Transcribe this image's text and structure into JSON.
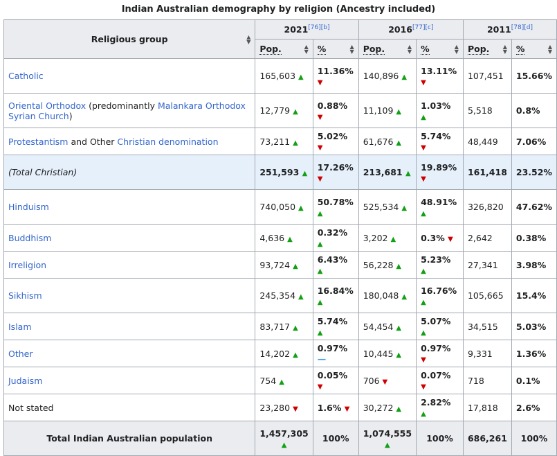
{
  "caption": "Indian Australian demography by religion (Ancestry included)",
  "header": {
    "group_label": "Religious group",
    "years": [
      {
        "year": "2021",
        "refs": "[76][b]"
      },
      {
        "year": "2016",
        "refs": "[77][c]"
      },
      {
        "year": "2011",
        "refs": "[78][d]"
      }
    ],
    "pop_label": "Pop.",
    "pct_label": "%"
  },
  "rows": [
    {
      "name": "catholic",
      "parts": [
        {
          "t": "Catholic",
          "link": true
        }
      ],
      "p21": "165,603",
      "p21t": "up",
      "c21": "11.36%",
      "c21t": "down",
      "p16": "140,896",
      "p16t": "up",
      "c16": "13.11%",
      "c16t": "down",
      "p11": "107,451",
      "c11": "15.66%"
    },
    {
      "name": "oriental-orthodox",
      "parts": [
        {
          "t": "Oriental Orthodox",
          "link": true
        },
        {
          "t": " (predominantly ",
          "link": false
        },
        {
          "t": "Malankara Orthodox Syrian Church",
          "link": true
        },
        {
          "t": ")",
          "link": false
        }
      ],
      "p21": "12,779",
      "p21t": "up",
      "c21": "0.88%",
      "c21t": "down",
      "p16": "11,109",
      "p16t": "up",
      "c16": "1.03%",
      "c16t": "up",
      "p11": "5,518",
      "c11": "0.8%"
    },
    {
      "name": "protestantism",
      "parts": [
        {
          "t": "Protestantism",
          "link": true
        },
        {
          "t": " and Other ",
          "link": false
        },
        {
          "t": "Christian denomination",
          "link": true
        }
      ],
      "p21": "73,211",
      "p21t": "up",
      "c21": "5.02%",
      "c21t": "down",
      "p16": "61,676",
      "p16t": "up",
      "c16": "5.74%",
      "c16t": "down",
      "p11": "48,449",
      "c11": "7.06%"
    },
    {
      "name": "total-christian",
      "parts": [
        {
          "t": "(Total Christian)",
          "link": false
        }
      ],
      "p21": "251,593",
      "p21t": "up",
      "c21": "17.26%",
      "c21t": "down",
      "p16": "213,681",
      "p16t": "up",
      "c16": "19.89%",
      "c16t": "down",
      "p11": "161,418",
      "c11": "23.52%"
    },
    {
      "name": "hinduism",
      "parts": [
        {
          "t": "Hinduism",
          "link": true
        }
      ],
      "p21": "740,050",
      "p21t": "up",
      "c21": "50.78%",
      "c21t": "up",
      "p16": "525,534",
      "p16t": "up",
      "c16": "48.91%",
      "c16t": "up",
      "p11": "326,820",
      "c11": "47.62%"
    },
    {
      "name": "buddhism",
      "parts": [
        {
          "t": "Buddhism",
          "link": true
        }
      ],
      "p21": "4,636",
      "p21t": "up",
      "c21": "0.32%",
      "c21t": "up",
      "p16": "3,202",
      "p16t": "up",
      "c16": "0.3%",
      "c16t": "down",
      "p11": "2,642",
      "c11": "0.38%"
    },
    {
      "name": "irreligion",
      "parts": [
        {
          "t": "Irreligion",
          "link": true
        }
      ],
      "p21": "93,724",
      "p21t": "up",
      "c21": "6.43%",
      "c21t": "up",
      "p16": "56,228",
      "p16t": "up",
      "c16": "5.23%",
      "c16t": "up",
      "p11": "27,341",
      "c11": "3.98%"
    },
    {
      "name": "sikhism",
      "parts": [
        {
          "t": "Sikhism",
          "link": true
        }
      ],
      "p21": "245,354",
      "p21t": "up",
      "c21": "16.84%",
      "c21t": "up",
      "p16": "180,048",
      "p16t": "up",
      "c16": "16.76%",
      "c16t": "up",
      "p11": "105,665",
      "c11": "15.4%"
    },
    {
      "name": "islam",
      "parts": [
        {
          "t": "Islam",
          "link": true
        }
      ],
      "p21": "83,717",
      "p21t": "up",
      "c21": "5.74%",
      "c21t": "up",
      "p16": "54,454",
      "p16t": "up",
      "c16": "5.07%",
      "c16t": "up",
      "p11": "34,515",
      "c11": "5.03%"
    },
    {
      "name": "other",
      "parts": [
        {
          "t": "Other",
          "link": true
        }
      ],
      "p21": "14,202",
      "p21t": "up",
      "c21": "0.97%",
      "c21t": "flat",
      "p16": "10,445",
      "p16t": "up",
      "c16": "0.97%",
      "c16t": "down",
      "p11": "9,331",
      "c11": "1.36%"
    },
    {
      "name": "judaism",
      "parts": [
        {
          "t": "Judaism",
          "link": true
        }
      ],
      "p21": "754",
      "p21t": "up",
      "c21": "0.05%",
      "c21t": "down",
      "p16": "706",
      "p16t": "down",
      "c16": "0.07%",
      "c16t": "down",
      "p11": "718",
      "c11": "0.1%"
    },
    {
      "name": "not-stated",
      "parts": [
        {
          "t": "Not stated",
          "link": false
        }
      ],
      "p21": "23,280",
      "p21t": "down",
      "c21": "1.6%",
      "c21t": "down",
      "p16": "30,272",
      "p16t": "up",
      "c16": "2.82%",
      "c16t": "up",
      "p11": "17,818",
      "c11": "2.6%"
    }
  ],
  "total": {
    "label": "Total Indian Australian population",
    "p21": "1,457,305",
    "p21t": "up",
    "c21": "100%",
    "p16": "1,074,555",
    "p16t": "up",
    "c16": "100%",
    "p11": "686,261",
    "c11": "100%"
  },
  "colors": {
    "header_bg": "#eaecf0",
    "border": "#a2a9b1",
    "link": "#3366cc",
    "up": "#14a014",
    "down": "#d00000",
    "flat": "#33a0e0",
    "highlight_row": "#e6f0fb"
  }
}
